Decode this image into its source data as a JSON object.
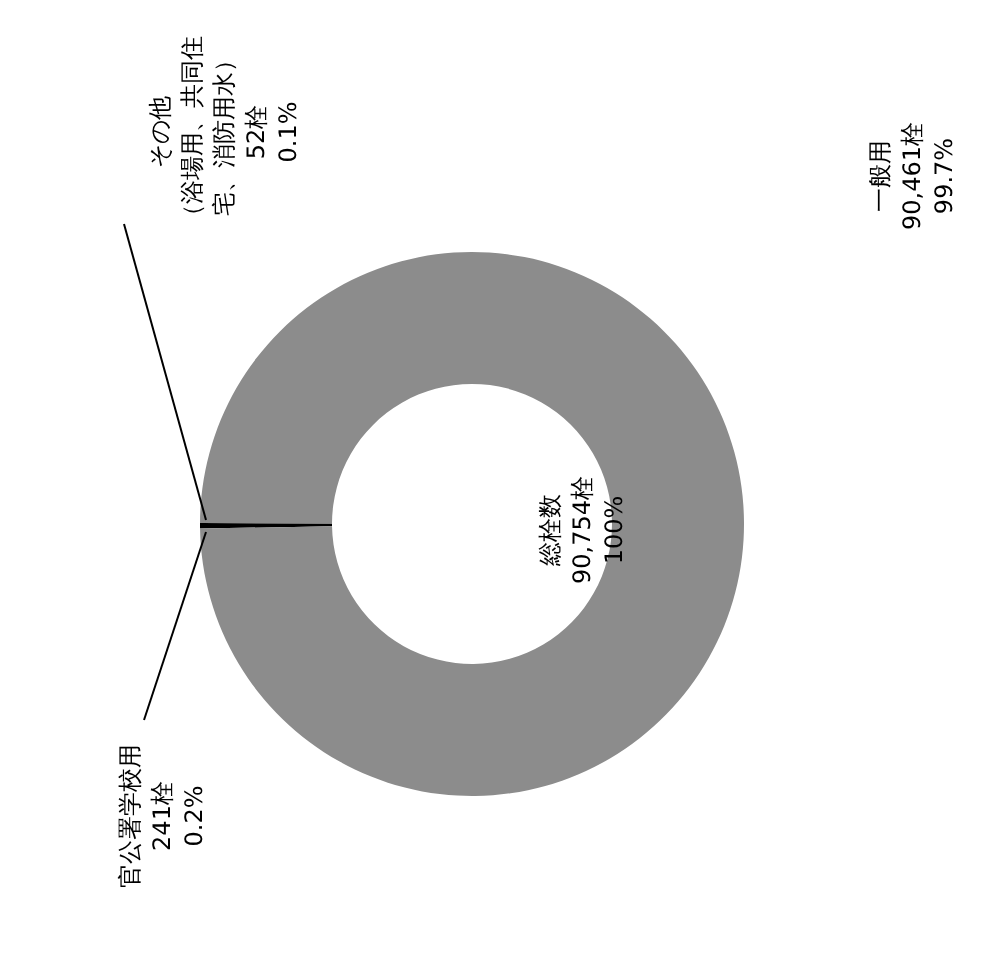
{
  "chart_data": {
    "type": "donut",
    "categories": [
      "官公署学校用",
      "その他（浴場用、共同住宅、消防用水）",
      "一般用"
    ],
    "values": [
      241,
      52,
      90461
    ],
    "colors": [
      "#000000",
      "#000000",
      "#8c8c8c"
    ],
    "value_labels": [
      "241栓 0.2%",
      "52栓 0.1%",
      "90,461栓 99.7%"
    ],
    "annotations": [
      "総栓数",
      "90,754栓",
      "100%"
    ]
  }
}
